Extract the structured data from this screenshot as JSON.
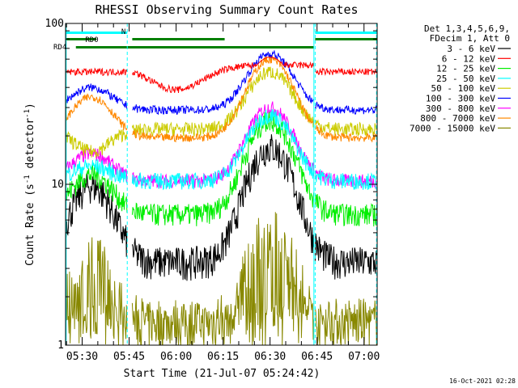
{
  "chart_data": {
    "type": "line",
    "title": "RHESSI Observing Summary Count Rates",
    "xlabel": "Start Time (21-Jul-07 05:24:42)",
    "ylabel_main": "Count Rate (s",
    "ylabel_sup": "-1",
    "ylabel_tail": " detector",
    "ylabel_end": ")",
    "yscale": "log",
    "ylim": [
      1,
      100
    ],
    "y_tick_labels": [
      "1",
      "10",
      "100"
    ],
    "x_tick_labels": [
      "05:30",
      "05:45",
      "06:00",
      "06:15",
      "06:30",
      "06:45",
      "07:00"
    ],
    "x_tick_minutes": [
      30,
      45,
      60,
      75,
      90,
      105,
      120
    ],
    "xlim_minutes": [
      24.7,
      124.2
    ],
    "legend_header": [
      "Det 1,3,4,5,6,9,",
      "FDecim 1, Att 0"
    ],
    "series": [
      {
        "name": "3 - 6 keV",
        "color": "#000000",
        "quiet": 3.3,
        "peak1": 9.8,
        "peak2": 17,
        "noise": 0.24
      },
      {
        "name": "6 - 12 keV",
        "color": "#ff0000",
        "quiet": 50,
        "peak1": 50,
        "peak2": 50,
        "noise": 0.05
      },
      {
        "name": "12 - 25 keV",
        "color": "#00ee00",
        "quiet": 6.5,
        "peak1": 11.5,
        "peak2": 25,
        "noise": 0.16
      },
      {
        "name": "25 - 50 keV",
        "color": "#00ffff",
        "quiet": 10.5,
        "peak1": 13,
        "peak2": 27,
        "noise": 0.12
      },
      {
        "name": "50 - 100 keV",
        "color": "#cccc00",
        "quiet": 22,
        "peak1": 16,
        "peak2": 50,
        "noise": 0.1
      },
      {
        "name": "100 - 300 keV",
        "color": "#0000ff",
        "quiet": 29,
        "peak1": 40,
        "peak2": 65,
        "noise": 0.06
      },
      {
        "name": "300 - 800 keV",
        "color": "#ff00ff",
        "quiet": 10.5,
        "peak1": 15.5,
        "peak2": 30,
        "noise": 0.1
      },
      {
        "name": "800 - 7000 keV",
        "color": "#ff8800",
        "quiet": 19.5,
        "peak1": 35,
        "peak2": 60,
        "noise": 0.06
      },
      {
        "name": "7000 - 15000 keV",
        "color": "#888800",
        "quiet": 1.4,
        "peak1": 3.5,
        "peak2": 5,
        "noise": 0.35
      }
    ],
    "flag_labels": [
      "RD0",
      "RD4",
      "N"
    ],
    "timestamp": "16-Oct-2021 02:28",
    "colors": {
      "night_flag": "#00ffff",
      "decim_flag": "#007f00",
      "axis": "#000000"
    }
  }
}
